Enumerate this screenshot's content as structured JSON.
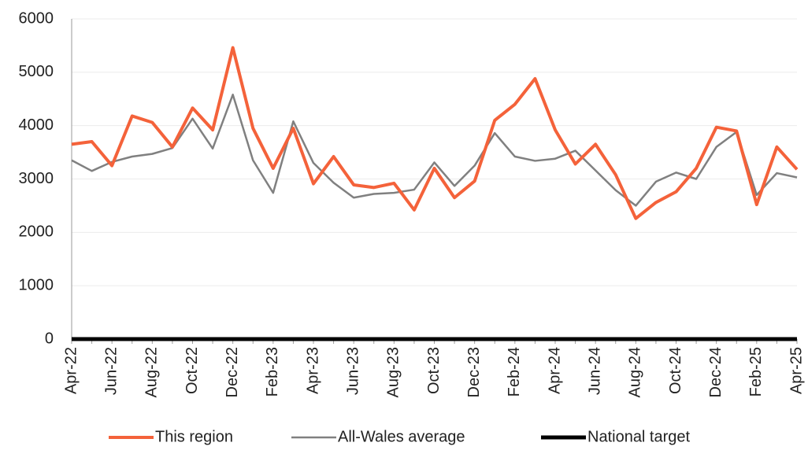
{
  "chart_data": {
    "type": "line",
    "categories": [
      "Apr-22",
      null,
      "Jun-22",
      null,
      "Aug-22",
      null,
      "Oct-22",
      null,
      "Dec-22",
      null,
      "Feb-23",
      null,
      "Apr-23",
      null,
      "Jun-23",
      null,
      "Aug-23",
      null,
      "Oct-23",
      null,
      "Dec-23",
      null,
      "Feb-24",
      null,
      "Apr-24",
      null,
      "Jun-24",
      null,
      "Aug-24",
      null,
      "Oct-24",
      null,
      "Dec-24",
      null,
      "Feb-25",
      null,
      "Apr-25"
    ],
    "series": [
      {
        "name": "This region",
        "color": "#f4623a",
        "values": [
          3650,
          3700,
          3250,
          4180,
          4060,
          3600,
          4330,
          3920,
          5460,
          3950,
          3200,
          3950,
          2910,
          3420,
          2890,
          2840,
          2920,
          2420,
          3200,
          2650,
          2960,
          4100,
          4400,
          4880,
          3920,
          3280,
          3650,
          3080,
          2260,
          2560,
          2760,
          3200,
          3970,
          3900,
          2520,
          3600,
          3180
        ]
      },
      {
        "name": "All-Wales average",
        "color": "#808080",
        "values": [
          3350,
          3150,
          3320,
          3420,
          3470,
          3580,
          4130,
          3570,
          4580,
          3350,
          2740,
          4080,
          3300,
          2930,
          2650,
          2720,
          2740,
          2800,
          3310,
          2870,
          3250,
          3860,
          3420,
          3340,
          3380,
          3530,
          3160,
          2790,
          2500,
          2950,
          3120,
          3000,
          3600,
          3880,
          2700,
          3110,
          3030
        ]
      },
      {
        "name": "National target",
        "color": "#000000",
        "values": [
          0,
          0,
          0,
          0,
          0,
          0,
          0,
          0,
          0,
          0,
          0,
          0,
          0,
          0,
          0,
          0,
          0,
          0,
          0,
          0,
          0,
          0,
          0,
          0,
          0,
          0,
          0,
          0,
          0,
          0,
          0,
          0,
          0,
          0,
          0,
          0,
          0
        ]
      }
    ],
    "ylim": [
      0,
      6000
    ],
    "yticks": [
      0,
      1000,
      2000,
      3000,
      4000,
      5000,
      6000
    ],
    "grid": true,
    "legend": "bottom"
  }
}
